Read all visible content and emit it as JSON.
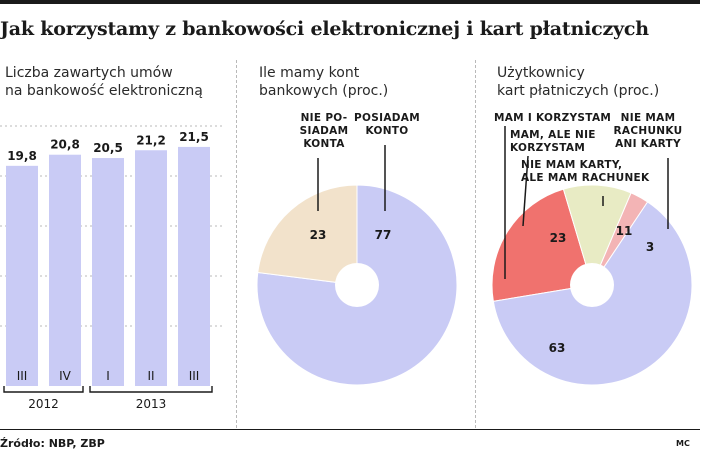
{
  "title": "Jak korzystamy z bankowości elektronicznej i kart płatniczych",
  "source": "Źródło: NBP, ZBP",
  "credit": "MC",
  "chart_data": [
    {
      "type": "bar",
      "subtitle_lines": [
        "Liczba zawartych umów",
        "na bankowość elektroniczną"
      ],
      "categories": [
        "III",
        "IV",
        "I",
        "II",
        "III"
      ],
      "values": [
        19.8,
        20.8,
        20.5,
        21.2,
        21.5
      ],
      "value_labels": [
        "19,8",
        "20,8",
        "20,5",
        "21,2",
        "21,5"
      ],
      "year_groups": [
        {
          "label": "2012",
          "span": [
            0,
            1
          ]
        },
        {
          "label": "2013",
          "span": [
            2,
            4
          ]
        }
      ],
      "ylim": [
        0,
        25
      ],
      "grid": true,
      "colors": {
        "bar": "#c9cbf5"
      }
    },
    {
      "type": "pie",
      "subtitle_lines": [
        "Ile mamy kont",
        "bankowych (proc.)"
      ],
      "slices": [
        {
          "label_lines": [
            "NIE PO-",
            "SIADAM",
            "KONTA"
          ],
          "value": 23,
          "color": "#f2e2cb"
        },
        {
          "label_lines": [
            "POSIADAM",
            "KONTO"
          ],
          "value": 77,
          "color": "#c9cbf5"
        }
      ],
      "donut": true
    },
    {
      "type": "pie",
      "subtitle_lines": [
        "Użytkownicy",
        "kart płatniczych (proc.)"
      ],
      "slices": [
        {
          "label_lines": [
            "MAM I KORZYSTAM"
          ],
          "value": 63,
          "color": "#c9cbf5"
        },
        {
          "label_lines": [
            "MAM, ALE NIE",
            "KORZYSTAM"
          ],
          "value": 23,
          "color": "#f0726e"
        },
        {
          "label_lines": [
            "NIE MAM KARTY,",
            "ALE MAM RACHUNEK"
          ],
          "value": 11,
          "color": "#e8ebc4"
        },
        {
          "label_lines": [
            "NIE MAM",
            "RACHUNKU",
            "ANI KARTY"
          ],
          "value": 3,
          "color": "#f3b4b5"
        }
      ],
      "donut": true
    }
  ]
}
